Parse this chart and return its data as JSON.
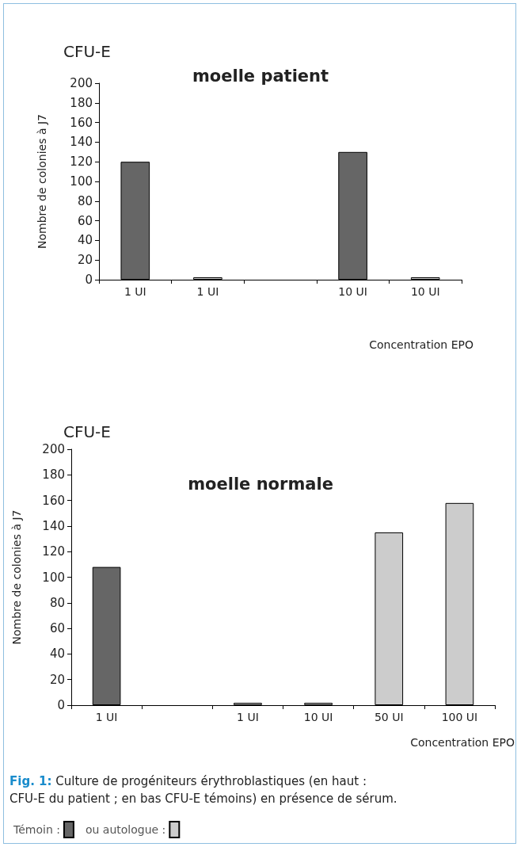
{
  "chart_data": [
    {
      "type": "bar",
      "title": "moelle patient",
      "subtitle": "CFU-E",
      "xlabel": "Concentration EPO",
      "ylabel": "Nombre de colonies à J7",
      "categories": [
        "1 UI",
        "1 UI",
        null,
        "10 UI",
        "10 UI"
      ],
      "series": [
        {
          "color": "#666666",
          "values": [
            120,
            null,
            null,
            130,
            null
          ]
        },
        {
          "color": "#cccccc",
          "values": [
            null,
            0,
            null,
            null,
            0
          ]
        }
      ],
      "ylim": [
        0,
        200
      ],
      "yticks": [
        0,
        20,
        40,
        60,
        80,
        100,
        120,
        140,
        160,
        180,
        200
      ],
      "grid": false,
      "legend": false
    },
    {
      "type": "bar",
      "title": "moelle normale",
      "subtitle": "CFU-E",
      "xlabel": "Concentration EPO",
      "ylabel": "Nombre de colonies à J7",
      "categories": [
        "1 UI",
        null,
        "1 UI",
        "10 UI",
        "50 UI",
        "100 UI"
      ],
      "series": [
        {
          "name": "Témoin :",
          "color": "#666666",
          "values": [
            108,
            null,
            null,
            null,
            null,
            null
          ]
        },
        {
          "name": "ou autologue :",
          "color": "#cccccc",
          "values": [
            null,
            null,
            0,
            0,
            135,
            158
          ]
        }
      ],
      "ylim": [
        0,
        200
      ],
      "yticks": [
        0,
        20,
        40,
        60,
        80,
        100,
        120,
        140,
        160,
        180,
        200
      ],
      "grid": false,
      "legend": "bottom left",
      "annotations": [
        "Fig. 1: Culture de progéniteurs érythroblastiques (en haut : CFU-E du patient ; en bas CFU-E témoins) en présence de sérum."
      ]
    }
  ]
}
